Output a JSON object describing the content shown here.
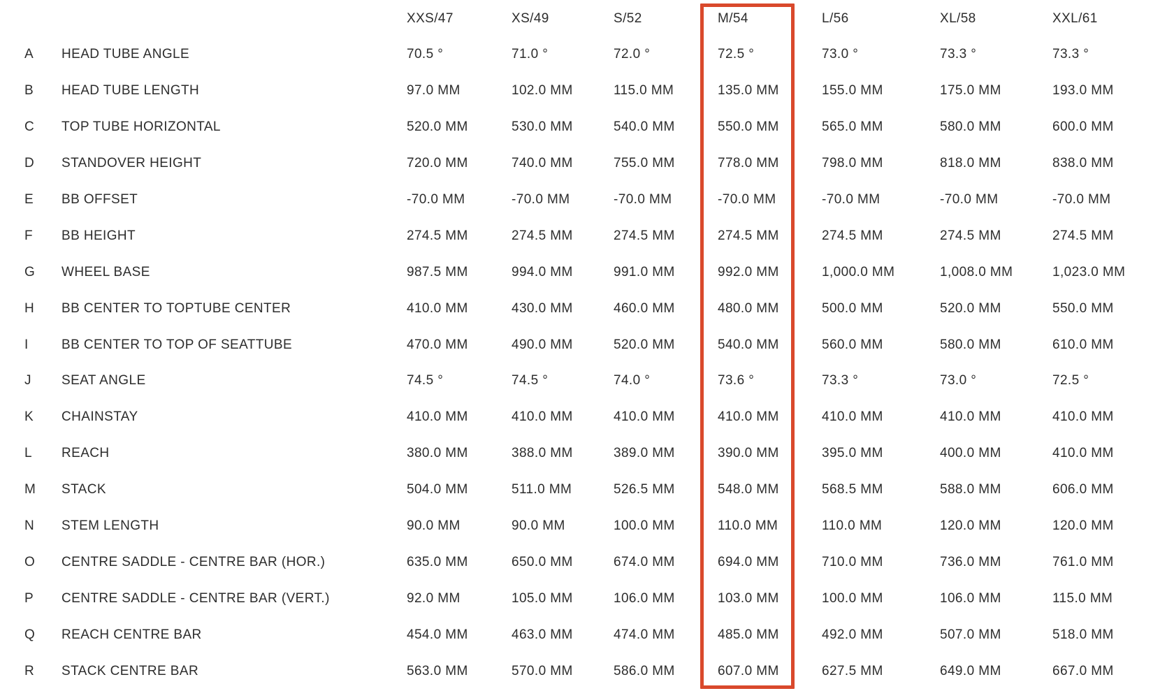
{
  "table": {
    "sizes": [
      "XXS/47",
      "XS/49",
      "S/52",
      "M/54",
      "L/56",
      "XL/58",
      "XXL/61"
    ],
    "highlighted_size": "M/54",
    "rows": [
      {
        "letter": "A",
        "label": "HEAD TUBE ANGLE",
        "values": [
          "70.5 °",
          "71.0 °",
          "72.0 °",
          "72.5 °",
          "73.0 °",
          "73.3 °",
          "73.3 °"
        ]
      },
      {
        "letter": "B",
        "label": "HEAD TUBE LENGTH",
        "values": [
          "97.0 MM",
          "102.0 MM",
          "115.0 MM",
          "135.0 MM",
          "155.0 MM",
          "175.0 MM",
          "193.0 MM"
        ]
      },
      {
        "letter": "C",
        "label": "TOP TUBE HORIZONTAL",
        "values": [
          "520.0 MM",
          "530.0 MM",
          "540.0 MM",
          "550.0 MM",
          "565.0 MM",
          "580.0 MM",
          "600.0 MM"
        ]
      },
      {
        "letter": "D",
        "label": "STANDOVER HEIGHT",
        "values": [
          "720.0 MM",
          "740.0 MM",
          "755.0 MM",
          "778.0 MM",
          "798.0 MM",
          "818.0 MM",
          "838.0 MM"
        ]
      },
      {
        "letter": "E",
        "label": "BB OFFSET",
        "values": [
          "-70.0 MM",
          "-70.0 MM",
          "-70.0 MM",
          "-70.0 MM",
          "-70.0 MM",
          "-70.0 MM",
          "-70.0 MM"
        ]
      },
      {
        "letter": "F",
        "label": "BB HEIGHT",
        "values": [
          "274.5 MM",
          "274.5 MM",
          "274.5 MM",
          "274.5 MM",
          "274.5 MM",
          "274.5 MM",
          "274.5 MM"
        ]
      },
      {
        "letter": "G",
        "label": "WHEEL BASE",
        "values": [
          "987.5 MM",
          "994.0 MM",
          "991.0 MM",
          "992.0 MM",
          "1,000.0 MM",
          "1,008.0 MM",
          "1,023.0 MM"
        ]
      },
      {
        "letter": "H",
        "label": "BB CENTER TO TOPTUBE CENTER",
        "values": [
          "410.0 MM",
          "430.0 MM",
          "460.0 MM",
          "480.0 MM",
          "500.0 MM",
          "520.0 MM",
          "550.0 MM"
        ]
      },
      {
        "letter": "I",
        "label": "BB CENTER TO TOP OF SEATTUBE",
        "values": [
          "470.0 MM",
          "490.0 MM",
          "520.0 MM",
          "540.0 MM",
          "560.0 MM",
          "580.0 MM",
          "610.0 MM"
        ]
      },
      {
        "letter": "J",
        "label": "SEAT ANGLE",
        "values": [
          "74.5 °",
          "74.5 °",
          "74.0 °",
          "73.6 °",
          "73.3 °",
          "73.0 °",
          "72.5 °"
        ]
      },
      {
        "letter": "K",
        "label": "CHAINSTAY",
        "values": [
          "410.0 MM",
          "410.0 MM",
          "410.0 MM",
          "410.0 MM",
          "410.0 MM",
          "410.0 MM",
          "410.0 MM"
        ]
      },
      {
        "letter": "L",
        "label": "REACH",
        "values": [
          "380.0 MM",
          "388.0 MM",
          "389.0 MM",
          "390.0 MM",
          "395.0 MM",
          "400.0 MM",
          "410.0 MM"
        ]
      },
      {
        "letter": "M",
        "label": "STACK",
        "values": [
          "504.0 MM",
          "511.0 MM",
          "526.5 MM",
          "548.0 MM",
          "568.5 MM",
          "588.0 MM",
          "606.0 MM"
        ]
      },
      {
        "letter": "N",
        "label": "STEM LENGTH",
        "values": [
          "90.0 MM",
          "90.0 MM",
          "100.0 MM",
          "110.0 MM",
          "110.0 MM",
          "120.0 MM",
          "120.0 MM"
        ]
      },
      {
        "letter": "O",
        "label": "CENTRE SADDLE - CENTRE BAR (HOR.)",
        "values": [
          "635.0 MM",
          "650.0 MM",
          "674.0 MM",
          "694.0 MM",
          "710.0 MM",
          "736.0 MM",
          "761.0 MM"
        ]
      },
      {
        "letter": "P",
        "label": "CENTRE SADDLE - CENTRE BAR (VERT.)",
        "values": [
          "92.0 MM",
          "105.0 MM",
          "106.0 MM",
          "103.0 MM",
          "100.0 MM",
          "106.0 MM",
          "115.0 MM"
        ]
      },
      {
        "letter": "Q",
        "label": "REACH CENTRE BAR",
        "values": [
          "454.0 MM",
          "463.0 MM",
          "474.0 MM",
          "485.0 MM",
          "492.0 MM",
          "507.0 MM",
          "518.0 MM"
        ]
      },
      {
        "letter": "R",
        "label": "STACK CENTRE BAR",
        "values": [
          "563.0 MM",
          "570.0 MM",
          "586.0 MM",
          "607.0 MM",
          "627.5 MM",
          "649.0 MM",
          "667.0 MM"
        ]
      }
    ]
  },
  "colors": {
    "highlight_border": "#d9492c",
    "row_stripe": "#f5f5f5",
    "text": "#2d2d2d"
  }
}
